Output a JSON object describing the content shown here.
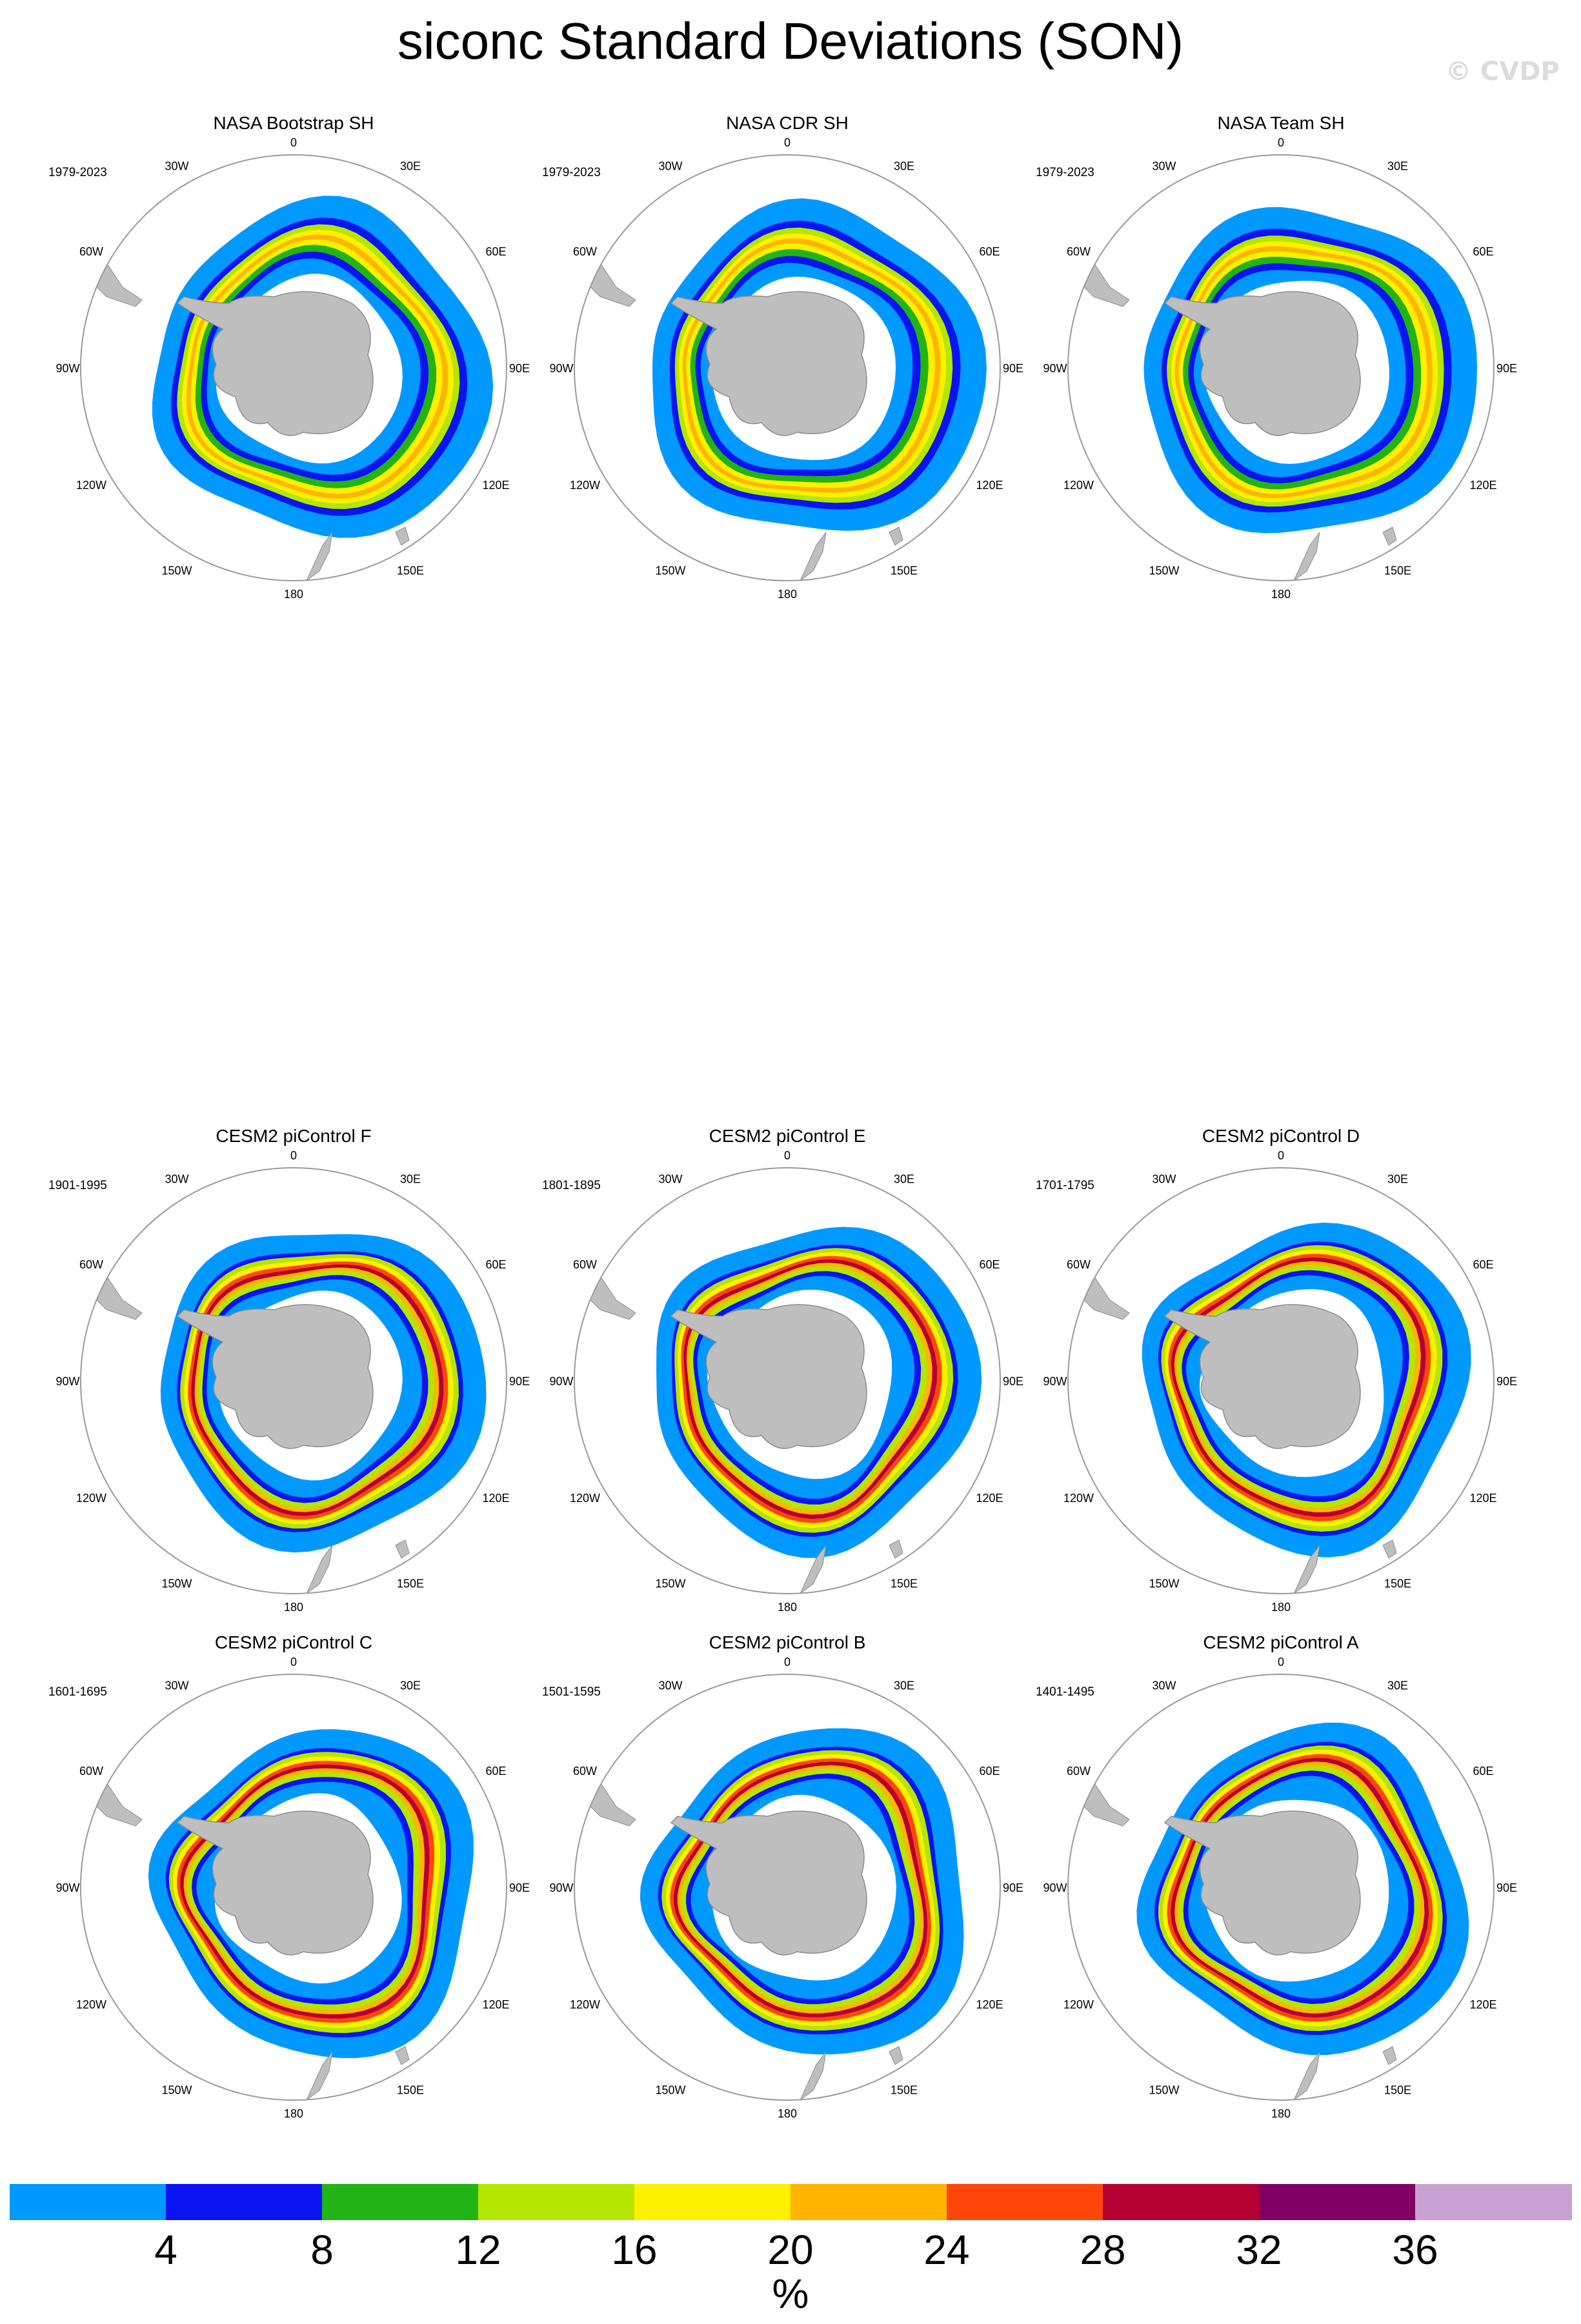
{
  "title": "siconc Standard Deviations (SON)",
  "watermark": "© CVDP",
  "map_labels": [
    "0",
    "30E",
    "60E",
    "90E",
    "120E",
    "150E",
    "180",
    "150W",
    "120W",
    "90W",
    "60W",
    "30W"
  ],
  "panels": [
    {
      "title": "NASA Bootstrap SH",
      "period": "1979-2023",
      "kind": "obs"
    },
    {
      "title": "NASA CDR SH",
      "period": "1979-2023",
      "kind": "obs"
    },
    {
      "title": "NASA Team SH",
      "period": "1979-2023",
      "kind": "obs"
    },
    {
      "title": "CESM2 piControl F",
      "period": "1901-1995",
      "kind": "model"
    },
    {
      "title": "CESM2 piControl E",
      "period": "1801-1895",
      "kind": "model"
    },
    {
      "title": "CESM2 piControl D",
      "period": "1701-1795",
      "kind": "model"
    },
    {
      "title": "CESM2 piControl C",
      "period": "1601-1695",
      "kind": "model"
    },
    {
      "title": "CESM2 piControl B",
      "period": "1501-1595",
      "kind": "model"
    },
    {
      "title": "CESM2 piControl A",
      "period": "1401-1495",
      "kind": "model"
    }
  ],
  "colorbar": {
    "colors": [
      "#0099ff",
      "#0a14f0",
      "#22b414",
      "#b4e600",
      "#fff000",
      "#ffb400",
      "#ff460a",
      "#b40032",
      "#820064",
      "#c8a0d2"
    ],
    "labels": [
      "4",
      "8",
      "12",
      "16",
      "20",
      "24",
      "28",
      "32",
      "36"
    ],
    "unit": "%"
  },
  "colors": {
    "land": "#bebebe",
    "coast": "#8c8c8c",
    "frame": "#9a9a9a"
  }
}
